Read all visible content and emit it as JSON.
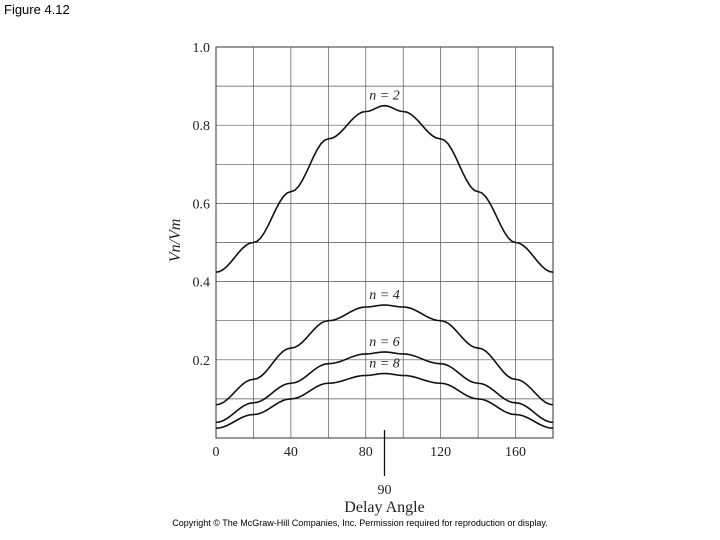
{
  "figure_label": "Figure 4.12",
  "copyright": "Copyright © The McGraw-Hill Companies, Inc. Permission required for reproduction or display.",
  "chart_data": {
    "type": "line",
    "xlabel": "Delay Angle",
    "ylabel": "Vn/Vm",
    "xlim": [
      0,
      180
    ],
    "ylim": [
      0,
      1.0
    ],
    "grid": true,
    "x_ticks": [
      0,
      40,
      80,
      120,
      160
    ],
    "x_tick_labels": [
      "0",
      "40",
      "80",
      "120",
      "160"
    ],
    "y_ticks": [
      0.2,
      0.4,
      0.6,
      0.8,
      1.0
    ],
    "y_tick_labels": [
      "0.2",
      "0.4",
      "0.6",
      "0.8",
      "1.0"
    ],
    "annotation": "90",
    "x": [
      0,
      20,
      40,
      60,
      80,
      90,
      100,
      120,
      140,
      160,
      180
    ],
    "series": [
      {
        "name": "n = 2",
        "values": [
          0.424,
          0.5,
          0.63,
          0.765,
          0.835,
          0.85,
          0.835,
          0.765,
          0.63,
          0.5,
          0.424
        ]
      },
      {
        "name": "n = 4",
        "values": [
          0.085,
          0.15,
          0.23,
          0.3,
          0.335,
          0.34,
          0.335,
          0.3,
          0.23,
          0.15,
          0.085
        ]
      },
      {
        "name": "n = 6",
        "values": [
          0.04,
          0.09,
          0.14,
          0.19,
          0.215,
          0.22,
          0.215,
          0.19,
          0.14,
          0.09,
          0.04
        ]
      },
      {
        "name": "n = 8",
        "values": [
          0.025,
          0.06,
          0.1,
          0.14,
          0.16,
          0.165,
          0.16,
          0.14,
          0.1,
          0.06,
          0.025
        ]
      }
    ]
  }
}
